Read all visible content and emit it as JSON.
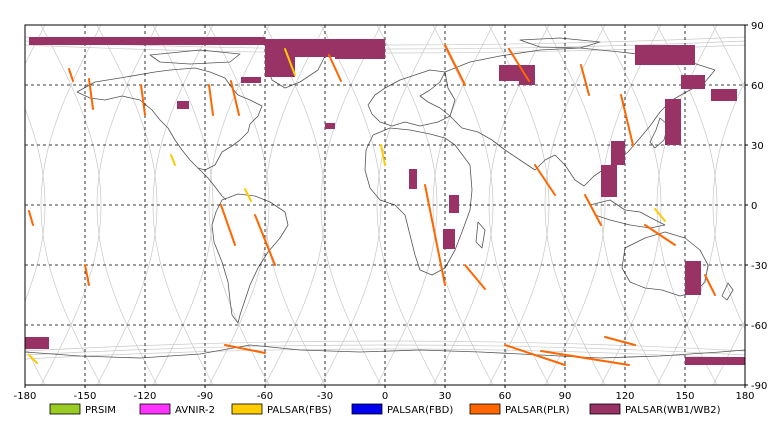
{
  "map": {
    "lon_range": [
      -180,
      180
    ],
    "lat_range": [
      -90,
      90
    ],
    "grid": "dashed",
    "x_ticks": [
      "-180",
      "-150",
      "-120",
      "-90",
      "-60",
      "-30",
      "0",
      "30",
      "60",
      "90",
      "120",
      "150",
      "180"
    ],
    "y_ticks": [
      "90",
      "60",
      "30",
      "0",
      "-30",
      "-60",
      "-90"
    ]
  },
  "legend": {
    "placement": "bottom",
    "items": [
      {
        "label": "PRSIM",
        "color": "#99cc22"
      },
      {
        "label": "AVNIR-2",
        "color": "#ff33ff"
      },
      {
        "label": "PALSAR(FBS)",
        "color": "#ffcc00"
      },
      {
        "label": "PALSAR(FBD)",
        "color": "#0000ee"
      },
      {
        "label": "PALSAR(PLR)",
        "color": "#ff6600"
      },
      {
        "label": "PALSAR(WB1/WB2)",
        "color": "#993366"
      }
    ]
  },
  "swaths": {
    "wb": [
      {
        "lon": [
          -178,
          -60
        ],
        "lat": [
          84,
          80
        ]
      },
      {
        "lon": [
          -60,
          -25
        ],
        "lat": [
          83,
          74
        ]
      },
      {
        "lon": [
          -25,
          0
        ],
        "lat": [
          83,
          73
        ]
      },
      {
        "lon": [
          -60,
          -45
        ],
        "lat": [
          76,
          64
        ]
      },
      {
        "lon": [
          -72,
          -62
        ],
        "lat": [
          64,
          61
        ]
      },
      {
        "lon": [
          -104,
          -98
        ],
        "lat": [
          52,
          48
        ]
      },
      {
        "lon": [
          -30,
          -25
        ],
        "lat": [
          41,
          38
        ]
      },
      {
        "lon": [
          12,
          16
        ],
        "lat": [
          18,
          8
        ]
      },
      {
        "lon": [
          32,
          37
        ],
        "lat": [
          5,
          -4
        ]
      },
      {
        "lon": [
          29,
          35
        ],
        "lat": [
          -12,
          -22
        ]
      },
      {
        "lon": [
          57,
          67
        ],
        "lat": [
          70,
          62
        ]
      },
      {
        "lon": [
          67,
          75
        ],
        "lat": [
          70,
          60
        ]
      },
      {
        "lon": [
          108,
          116
        ],
        "lat": [
          20,
          4
        ]
      },
      {
        "lon": [
          113,
          120
        ],
        "lat": [
          32,
          20
        ]
      },
      {
        "lon": [
          125,
          140
        ],
        "lat": [
          80,
          70
        ]
      },
      {
        "lon": [
          140,
          155
        ],
        "lat": [
          80,
          70
        ]
      },
      {
        "lon": [
          148,
          160
        ],
        "lat": [
          65,
          58
        ]
      },
      {
        "lon": [
          140,
          148
        ],
        "lat": [
          53,
          30
        ]
      },
      {
        "lon": [
          163,
          176
        ],
        "lat": [
          58,
          52
        ]
      },
      {
        "lon": [
          150,
          158
        ],
        "lat": [
          -28,
          -45
        ]
      },
      {
        "lon": [
          -180,
          -168
        ],
        "lat": [
          -66,
          -72
        ]
      },
      {
        "lon": [
          150,
          180
        ],
        "lat": [
          -76,
          -80
        ]
      }
    ],
    "plr": [
      {
        "lon": [
          -158,
          -156
        ],
        "lat": [
          68,
          62
        ]
      },
      {
        "lon": [
          -148,
          -146
        ],
        "lat": [
          63,
          48
        ]
      },
      {
        "lon": [
          -122,
          -120
        ],
        "lat": [
          60,
          45
        ]
      },
      {
        "lon": [
          -88,
          -86
        ],
        "lat": [
          60,
          45
        ]
      },
      {
        "lon": [
          -77,
          -73
        ],
        "lat": [
          62,
          45
        ]
      },
      {
        "lon": [
          -28,
          -22
        ],
        "lat": [
          75,
          62
        ]
      },
      {
        "lon": [
          30,
          40
        ],
        "lat": [
          80,
          60
        ]
      },
      {
        "lon": [
          62,
          72
        ],
        "lat": [
          78,
          62
        ]
      },
      {
        "lon": [
          98,
          102
        ],
        "lat": [
          70,
          55
        ]
      },
      {
        "lon": [
          118,
          124
        ],
        "lat": [
          55,
          30
        ]
      },
      {
        "lon": [
          -178,
          -176
        ],
        "lat": [
          -3,
          -10
        ]
      },
      {
        "lon": [
          -150,
          -148
        ],
        "lat": [
          -30,
          -40
        ]
      },
      {
        "lon": [
          -82,
          -75
        ],
        "lat": [
          0,
          -20
        ]
      },
      {
        "lon": [
          -65,
          -55
        ],
        "lat": [
          -5,
          -30
        ]
      },
      {
        "lon": [
          20,
          30
        ],
        "lat": [
          10,
          -40
        ]
      },
      {
        "lon": [
          40,
          50
        ],
        "lat": [
          -30,
          -42
        ]
      },
      {
        "lon": [
          75,
          85
        ],
        "lat": [
          20,
          5
        ]
      },
      {
        "lon": [
          100,
          108
        ],
        "lat": [
          5,
          -10
        ]
      },
      {
        "lon": [
          130,
          145
        ],
        "lat": [
          -10,
          -20
        ]
      },
      {
        "lon": [
          160,
          165
        ],
        "lat": [
          -35,
          -45
        ]
      },
      {
        "lon": [
          78,
          122
        ],
        "lat": [
          -73,
          -80
        ]
      },
      {
        "lon": [
          60,
          90
        ],
        "lat": [
          -70,
          -80
        ]
      },
      {
        "lon": [
          -80,
          -60
        ],
        "lat": [
          -70,
          -74
        ]
      },
      {
        "lon": [
          110,
          125
        ],
        "lat": [
          -66,
          -70
        ]
      }
    ],
    "fbs": [
      {
        "lon": [
          -50,
          -45
        ],
        "lat": [
          78,
          65
        ]
      },
      {
        "lon": [
          -2,
          0
        ],
        "lat": [
          30,
          20
        ]
      },
      {
        "lon": [
          -107,
          -105
        ],
        "lat": [
          25,
          20
        ]
      },
      {
        "lon": [
          -70,
          -67
        ],
        "lat": [
          8,
          2
        ]
      },
      {
        "lon": [
          135,
          140
        ],
        "lat": [
          -2,
          -8
        ]
      },
      {
        "lon": [
          -178,
          -174
        ],
        "lat": [
          -75,
          -79
        ]
      }
    ]
  }
}
